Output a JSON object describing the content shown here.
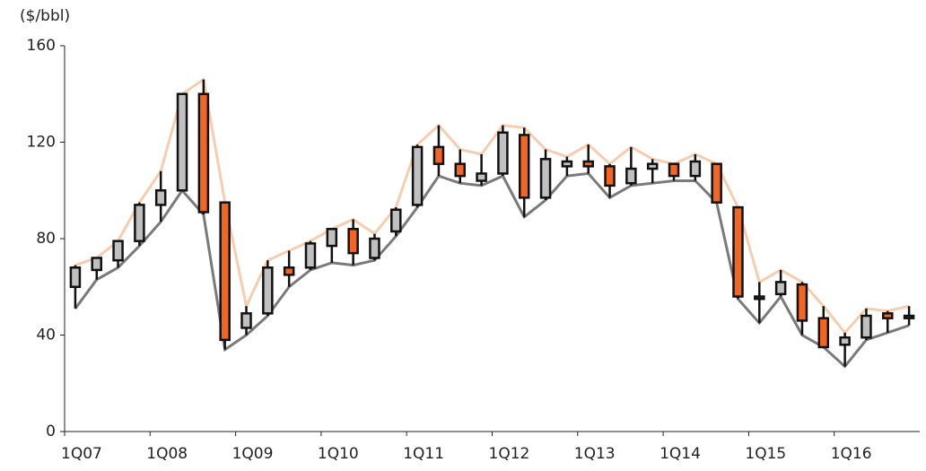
{
  "chart_data": {
    "type": "candlestick",
    "y_label": "($/bbl)",
    "categories": [
      "1Q07",
      null,
      null,
      null,
      "1Q08",
      null,
      null,
      null,
      "1Q09",
      null,
      null,
      null,
      "1Q10",
      null,
      null,
      null,
      "1Q11",
      null,
      null,
      null,
      "1Q12",
      null,
      null,
      null,
      "1Q13",
      null,
      null,
      null,
      "1Q14",
      null,
      null,
      null,
      "1Q15",
      null,
      null,
      null,
      "1Q16",
      null,
      null,
      null
    ],
    "open": [
      60,
      67,
      71,
      79,
      94,
      100,
      140,
      95,
      43,
      49,
      68,
      68,
      77,
      84,
      72,
      83,
      94,
      118,
      111,
      104,
      107,
      123,
      97,
      110,
      112,
      110,
      103,
      109,
      111,
      106,
      111,
      93,
      56,
      57,
      61,
      47,
      36,
      39,
      49,
      48
    ],
    "high": [
      69,
      72,
      79,
      95,
      108,
      140,
      146,
      95,
      52,
      71,
      75,
      79,
      84,
      88,
      82,
      93,
      119,
      127,
      117,
      115,
      127,
      126,
      117,
      114,
      119,
      111,
      118,
      113,
      111,
      115,
      111,
      93,
      62,
      67,
      62,
      52,
      41,
      51,
      50,
      52
    ],
    "low": [
      51,
      63,
      68,
      77,
      87,
      100,
      90,
      34,
      40,
      48,
      60,
      67,
      70,
      69,
      71,
      81,
      93,
      106,
      103,
      102,
      106,
      89,
      96,
      106,
      107,
      97,
      102,
      103,
      104,
      104,
      95,
      55,
      45,
      56,
      40,
      35,
      27,
      38,
      41,
      44
    ],
    "close": [
      68,
      72,
      79,
      94,
      100,
      140,
      91,
      38,
      49,
      68,
      65,
      78,
      84,
      74,
      80,
      92,
      118,
      111,
      106,
      107,
      124,
      97,
      113,
      112,
      110,
      102,
      109,
      111,
      106,
      112,
      95,
      56,
      55,
      62,
      46,
      35,
      39,
      48,
      47,
      47
    ],
    "up_color": "#c0c0c0",
    "down_color": "#f26522",
    "high_line_color": "#f7cdb0",
    "low_line_color": "#7a7a7a",
    "ylim": [
      0,
      160
    ],
    "yticks": [
      0,
      40,
      80,
      120,
      160
    ],
    "grid": false
  }
}
